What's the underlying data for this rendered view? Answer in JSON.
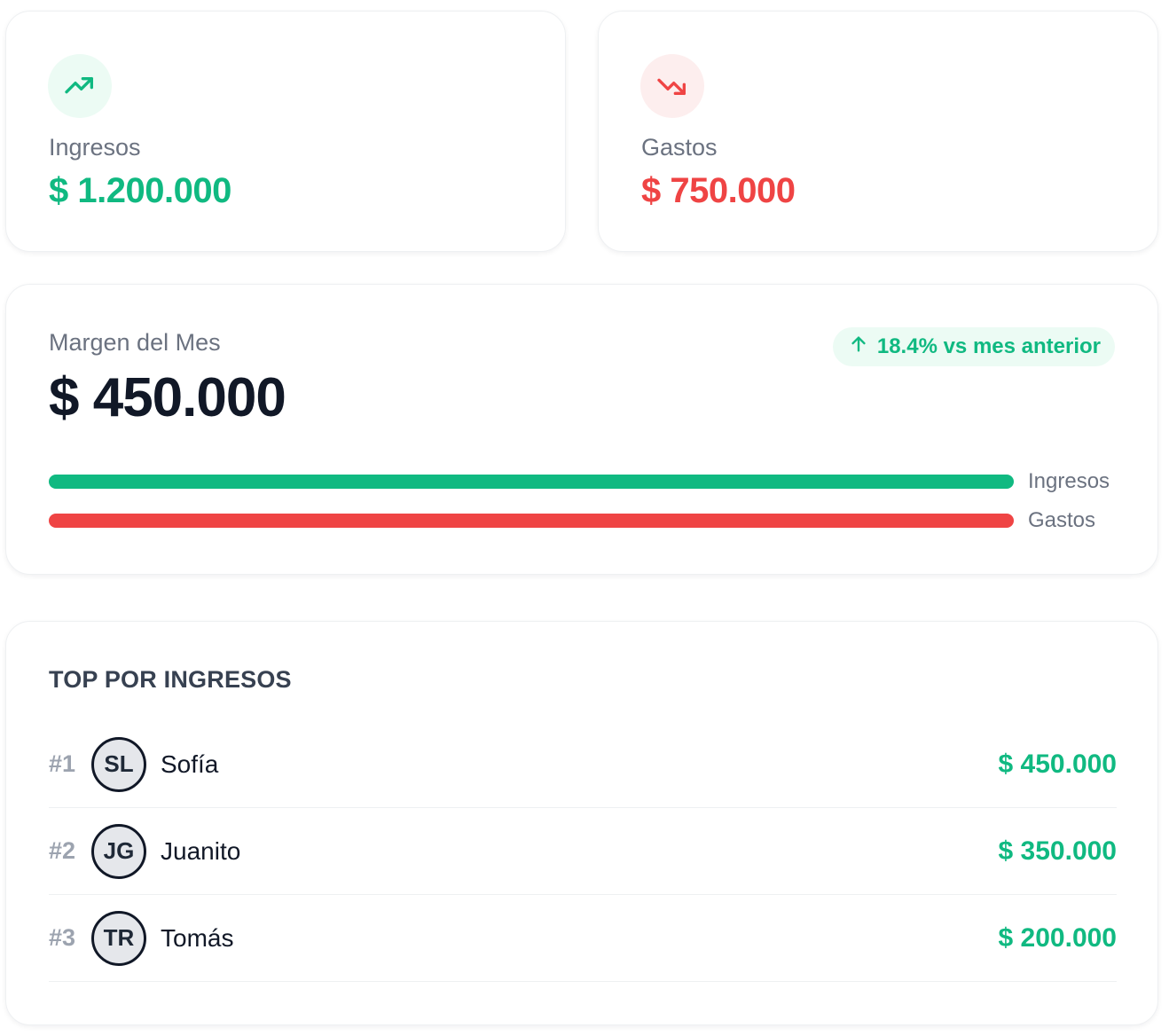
{
  "income_card": {
    "label": "Ingresos",
    "value": "$ 1.200.000",
    "icon": "trending-up-icon",
    "color": "#10b981"
  },
  "expense_card": {
    "label": "Gastos",
    "value": "$ 750.000",
    "icon": "trending-down-icon",
    "color": "#ef4444"
  },
  "margin_card": {
    "label": "Margen del Mes",
    "value": "$ 450.000",
    "badge": {
      "icon": "arrow-up-icon",
      "text": "18.4% vs mes anterior"
    },
    "bars": [
      {
        "label": "Ingresos",
        "fraction": 1.0,
        "color": "#10b981"
      },
      {
        "label": "Gastos",
        "fraction": 1.0,
        "color": "#ef4444"
      }
    ]
  },
  "top_card": {
    "title": "TOP POR INGRESOS",
    "items": [
      {
        "rank": "#1",
        "initials": "SL",
        "name": "Sofía",
        "amount": "$ 450.000"
      },
      {
        "rank": "#2",
        "initials": "JG",
        "name": "Juanito",
        "amount": "$ 350.000"
      },
      {
        "rank": "#3",
        "initials": "TR",
        "name": "Tomás",
        "amount": "$ 200.000"
      }
    ]
  }
}
